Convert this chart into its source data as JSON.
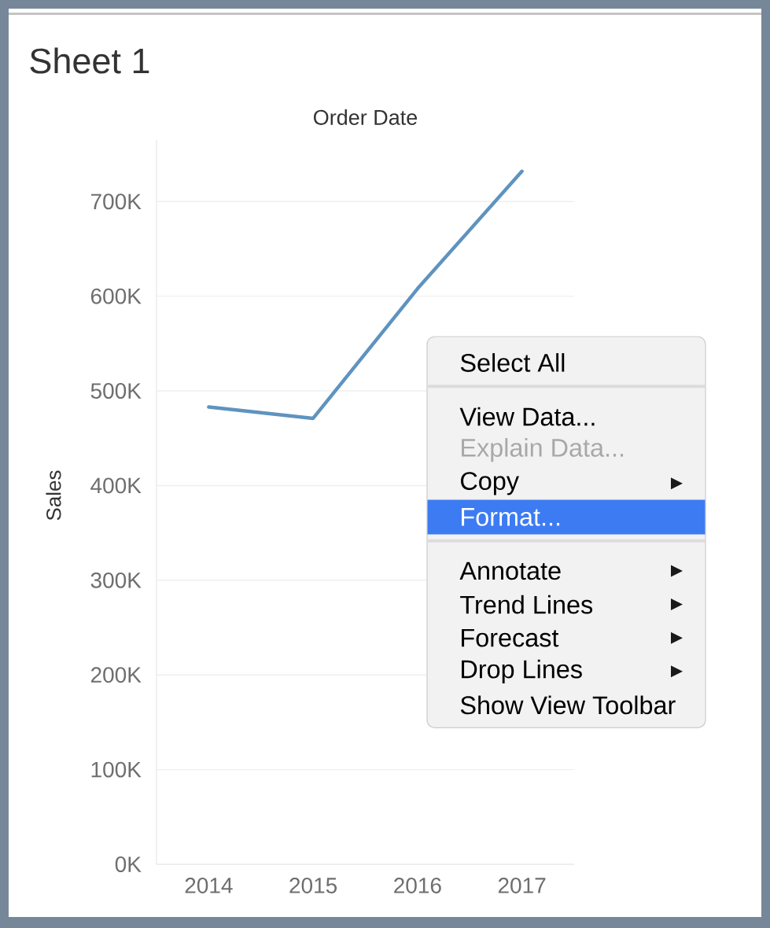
{
  "chart_data": {
    "type": "line",
    "title": "Sheet 1",
    "xlabel": "Order Date",
    "ylabel": "Sales",
    "categories": [
      "2014",
      "2015",
      "2016",
      "2017"
    ],
    "values": [
      483000,
      471000,
      608000,
      732000
    ],
    "color": "#5f93bf",
    "ylim": [
      0,
      765000
    ],
    "yticks": [
      {
        "value": 0,
        "label": "0K"
      },
      {
        "value": 100000,
        "label": "100K"
      },
      {
        "value": 200000,
        "label": "200K"
      },
      {
        "value": 300000,
        "label": "300K"
      },
      {
        "value": 400000,
        "label": "400K"
      },
      {
        "value": 500000,
        "label": "500K"
      },
      {
        "value": 600000,
        "label": "600K"
      },
      {
        "value": 700000,
        "label": "700K"
      }
    ],
    "grid": "y",
    "annotations": [
      "Select All",
      "View Data...",
      "Explain Data...",
      "Copy",
      "Format...",
      "Annotate",
      "Trend Lines",
      "Forecast",
      "Drop Lines",
      "Show View Toolbar"
    ]
  }
}
